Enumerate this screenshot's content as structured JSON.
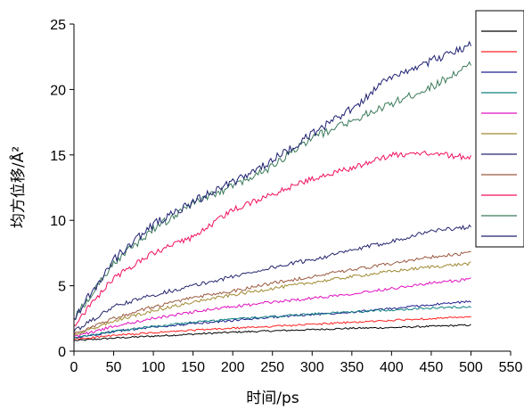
{
  "chart_data": {
    "type": "line",
    "title": "",
    "xlabel": "时间/ps",
    "ylabel": "均方位移/Å²",
    "xlim": [
      0,
      550
    ],
    "ylim": [
      0,
      25
    ],
    "x_ticks": [
      "0",
      "50",
      "100",
      "150",
      "200",
      "250",
      "300",
      "350",
      "400",
      "450",
      "500",
      "550"
    ],
    "y_ticks": [
      "0",
      "5",
      "10",
      "15",
      "20",
      "25"
    ],
    "grid": false,
    "legend_position": "top-right",
    "legend_entries": [
      "",
      "",
      "",
      "",
      "",
      "",
      "",
      "",
      "",
      "",
      ""
    ],
    "series": [
      {
        "color": "#000000",
        "x": [
          0,
          50,
          100,
          150,
          200,
          250,
          300,
          350,
          400,
          450,
          500
        ],
        "y": [
          0.8,
          1.0,
          1.15,
          1.3,
          1.45,
          1.55,
          1.65,
          1.75,
          1.8,
          1.9,
          2.0
        ]
      },
      {
        "color": "#ff2020",
        "x": [
          0,
          50,
          100,
          150,
          200,
          250,
          300,
          350,
          400,
          450,
          500
        ],
        "y": [
          0.9,
          1.2,
          1.4,
          1.6,
          1.75,
          1.9,
          2.05,
          2.2,
          2.35,
          2.5,
          2.6
        ]
      },
      {
        "color": "#1f1f8f",
        "x": [
          0,
          50,
          100,
          150,
          200,
          250,
          300,
          350,
          400,
          450,
          500
        ],
        "y": [
          1.0,
          1.5,
          1.85,
          2.1,
          2.35,
          2.6,
          2.8,
          3.0,
          3.25,
          3.55,
          3.8
        ]
      },
      {
        "color": "#0e8080",
        "x": [
          0,
          50,
          100,
          150,
          200,
          250,
          300,
          350,
          400,
          450,
          500
        ],
        "y": [
          1.0,
          1.5,
          1.9,
          2.2,
          2.45,
          2.65,
          2.85,
          3.0,
          3.15,
          3.3,
          3.4
        ]
      },
      {
        "color": "#e010c0",
        "x": [
          0,
          50,
          100,
          150,
          200,
          250,
          300,
          350,
          400,
          450,
          500
        ],
        "y": [
          1.1,
          1.9,
          2.5,
          3.0,
          3.4,
          3.75,
          4.05,
          4.4,
          4.8,
          5.2,
          5.5
        ]
      },
      {
        "color": "#a08a30",
        "x": [
          0,
          50,
          100,
          150,
          200,
          250,
          300,
          350,
          400,
          450,
          500
        ],
        "y": [
          1.2,
          2.3,
          3.1,
          3.75,
          4.3,
          4.8,
          5.25,
          5.7,
          6.1,
          6.45,
          6.7
        ]
      },
      {
        "color": "#26266e",
        "x": [
          0,
          50,
          100,
          150,
          200,
          250,
          300,
          350,
          400,
          450,
          500
        ],
        "y": [
          1.5,
          3.4,
          4.3,
          5.0,
          5.7,
          6.4,
          7.0,
          7.7,
          8.4,
          9.2,
          9.5
        ]
      },
      {
        "color": "#9a5a40",
        "x": [
          0,
          50,
          100,
          150,
          200,
          250,
          300,
          350,
          400,
          450,
          500
        ],
        "y": [
          1.3,
          2.5,
          3.4,
          4.1,
          4.6,
          5.2,
          5.7,
          6.2,
          6.7,
          7.2,
          7.5
        ]
      },
      {
        "color": "#f01060",
        "x": [
          0,
          50,
          100,
          150,
          200,
          250,
          300,
          350,
          400,
          450,
          500
        ],
        "y": [
          2.0,
          5.6,
          7.5,
          8.7,
          10.8,
          12.0,
          13.2,
          14.0,
          15.0,
          15.1,
          14.8
        ]
      },
      {
        "color": "#3a7a5a",
        "x": [
          0,
          50,
          100,
          150,
          200,
          250,
          300,
          350,
          400,
          450,
          500
        ],
        "y": [
          2.5,
          6.8,
          9.3,
          11.3,
          12.6,
          14.1,
          16.3,
          17.6,
          18.9,
          20.2,
          21.9
        ]
      },
      {
        "color": "#1e2070",
        "x": [
          0,
          50,
          100,
          150,
          200,
          250,
          300,
          350,
          400,
          450,
          500
        ],
        "y": [
          2.5,
          7.0,
          9.7,
          11.4,
          12.9,
          14.6,
          16.6,
          18.5,
          21.0,
          22.2,
          23.4
        ]
      }
    ]
  }
}
